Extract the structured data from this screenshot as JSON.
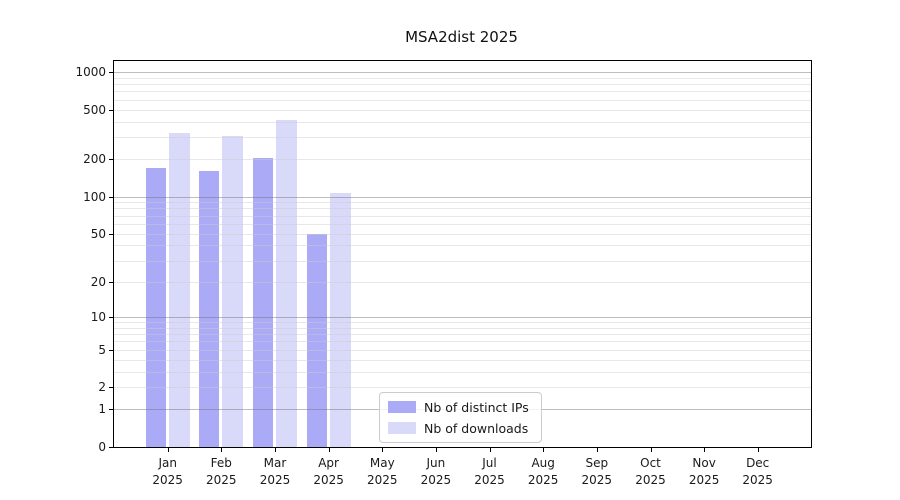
{
  "chart_data": {
    "type": "bar",
    "title": "MSA2dist 2025",
    "scale": "log10(1+y)",
    "grid": true,
    "legend_position": "lower center-left inside plot",
    "x_months": [
      "Jan",
      "Feb",
      "Mar",
      "Apr",
      "May",
      "Jun",
      "Jul",
      "Aug",
      "Sep",
      "Oct",
      "Nov",
      "Dec"
    ],
    "year": "2025",
    "categories": [
      "Jan 2025",
      "Feb 2025",
      "Mar 2025",
      "Apr 2025",
      "May 2025",
      "Jun 2025",
      "Jul 2025",
      "Aug 2025",
      "Sep 2025",
      "Oct 2025",
      "Nov 2025",
      "Dec 2025"
    ],
    "series": [
      {
        "name": "Nb of distinct IPs",
        "color": "#aaaaf6",
        "values": [
          170,
          162,
          203,
          50,
          0,
          0,
          0,
          0,
          0,
          0,
          0,
          0
        ]
      },
      {
        "name": "Nb of downloads",
        "color": "#d9d9f9",
        "values": [
          325,
          306,
          410,
          106,
          0,
          0,
          0,
          0,
          0,
          0,
          0,
          0
        ]
      }
    ],
    "y_ticks": [
      0,
      1,
      2,
      5,
      10,
      20,
      50,
      100,
      200,
      500,
      1000
    ],
    "y_major_gridlines": [
      1,
      10,
      100,
      1000
    ],
    "ylim": [
      0,
      1220
    ],
    "xlabel": "",
    "ylabel": ""
  },
  "colors": {
    "bar_distinct_ips": "#aaaaf6",
    "bar_downloads": "#d9d9f9",
    "grid_major": "#c6c6c6",
    "grid_minor": "#ededed",
    "spine": "#000000",
    "text": "#1a1a1a"
  }
}
